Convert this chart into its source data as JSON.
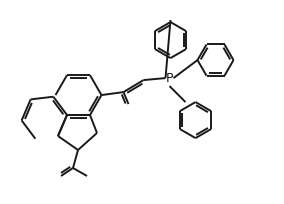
{
  "background_color": "#ffffff",
  "line_color": "#1a1a1a",
  "line_width": 1.4,
  "fig_width": 2.84,
  "fig_height": 2.04,
  "dpi": 100
}
